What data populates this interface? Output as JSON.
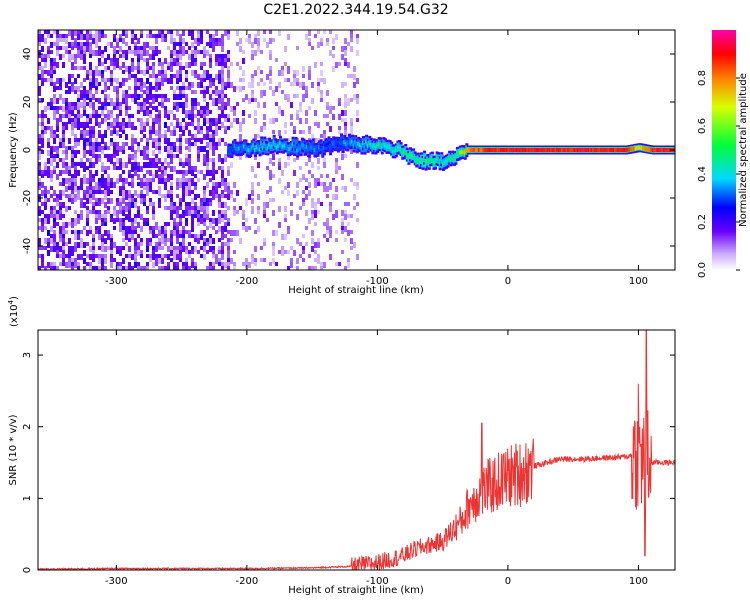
{
  "title": "C2E1.2022.344.19.54.G32",
  "chart_data": [
    {
      "type": "heatmap",
      "title": "C2E1.2022.344.19.54.G32",
      "xlabel": "Height of straight line (km)",
      "ylabel": "Frequency (Hz)",
      "xlim": [
        -360,
        128
      ],
      "ylim": [
        -50,
        50
      ],
      "x_ticks": [
        "-300",
        "-200",
        "-100",
        "0",
        "100"
      ],
      "y_ticks": [
        "-40",
        "-20",
        "0",
        "20",
        "40"
      ],
      "x_tick_values": [
        -300,
        -200,
        -100,
        0,
        100
      ],
      "y_tick_values": [
        -40,
        -20,
        0,
        20,
        40
      ],
      "colorbar": {
        "label": "Normalized spectral amplitude",
        "range": [
          0,
          1
        ],
        "ticks": [
          "0.0",
          "0.2",
          "0.4",
          "0.6",
          "0.8"
        ],
        "tick_values": [
          0,
          0.2,
          0.4,
          0.6,
          0.8
        ]
      },
      "noise_region": {
        "dense_x": [
          -360,
          -215
        ],
        "sparse_x": [
          -215,
          -115
        ],
        "amplitude": 0.25
      },
      "signal_trace": {
        "x": [
          -215,
          -200,
          -180,
          -160,
          -140,
          -130,
          -110,
          -100,
          -90,
          -80,
          -70,
          -60,
          -50,
          -40,
          -32,
          -20,
          0,
          50,
          90,
          100,
          110,
          128
        ],
        "frequency": [
          0,
          1,
          2,
          1,
          1,
          3,
          2,
          2,
          1,
          -1,
          -4,
          -5,
          -5,
          -3,
          0,
          0,
          0,
          0,
          0,
          1,
          0,
          0
        ],
        "amplitude": [
          0.3,
          0.35,
          0.4,
          0.35,
          0.3,
          0.3,
          0.4,
          0.45,
          0.45,
          0.5,
          0.5,
          0.5,
          0.45,
          0.5,
          0.8,
          0.85,
          0.9,
          0.9,
          0.9,
          0.7,
          0.9,
          0.9
        ]
      }
    },
    {
      "type": "line",
      "xlabel": "Height of straight line (km)",
      "ylabel": "SNR (10 * v/v)",
      "y_multiplier": "(x10",
      "y_multiplier_exp": "4",
      "y_multiplier_close": ")",
      "xlim": [
        -360,
        128
      ],
      "ylim": [
        0,
        3.35
      ],
      "x_ticks": [
        "-300",
        "-200",
        "-100",
        "0",
        "100"
      ],
      "y_ticks": [
        "0",
        "1",
        "2",
        "3"
      ],
      "x_tick_values": [
        -300,
        -200,
        -100,
        0,
        100
      ],
      "y_tick_values": [
        0,
        1,
        2,
        3
      ],
      "series": [
        {
          "color": "#ee3333",
          "x": [
            -360,
            -300,
            -200,
            -150,
            -120,
            -100,
            -80,
            -70,
            -60,
            -50,
            -40,
            -35,
            -30,
            -25,
            -20,
            -15,
            -10,
            -5,
            0,
            10,
            20,
            30,
            40,
            50,
            60,
            70,
            80,
            90,
            95,
            100,
            103,
            106,
            110,
            120,
            128
          ],
          "y": [
            0.01,
            0.02,
            0.02,
            0.03,
            0.05,
            0.1,
            0.2,
            0.3,
            0.35,
            0.4,
            0.6,
            0.7,
            0.9,
            1.0,
            1.1,
            1.15,
            1.2,
            1.25,
            1.3,
            1.35,
            1.45,
            1.5,
            1.55,
            1.55,
            1.55,
            1.56,
            1.57,
            1.58,
            1.6,
            1.62,
            1.55,
            1.5,
            1.5,
            1.5,
            1.5
          ]
        }
      ],
      "spikes": [
        {
          "x": -20,
          "y": 2.05
        },
        {
          "x": 100,
          "y": 2.6
        },
        {
          "x": 106,
          "y": 3.35
        },
        {
          "x": 105,
          "y": 0.2
        }
      ]
    }
  ]
}
